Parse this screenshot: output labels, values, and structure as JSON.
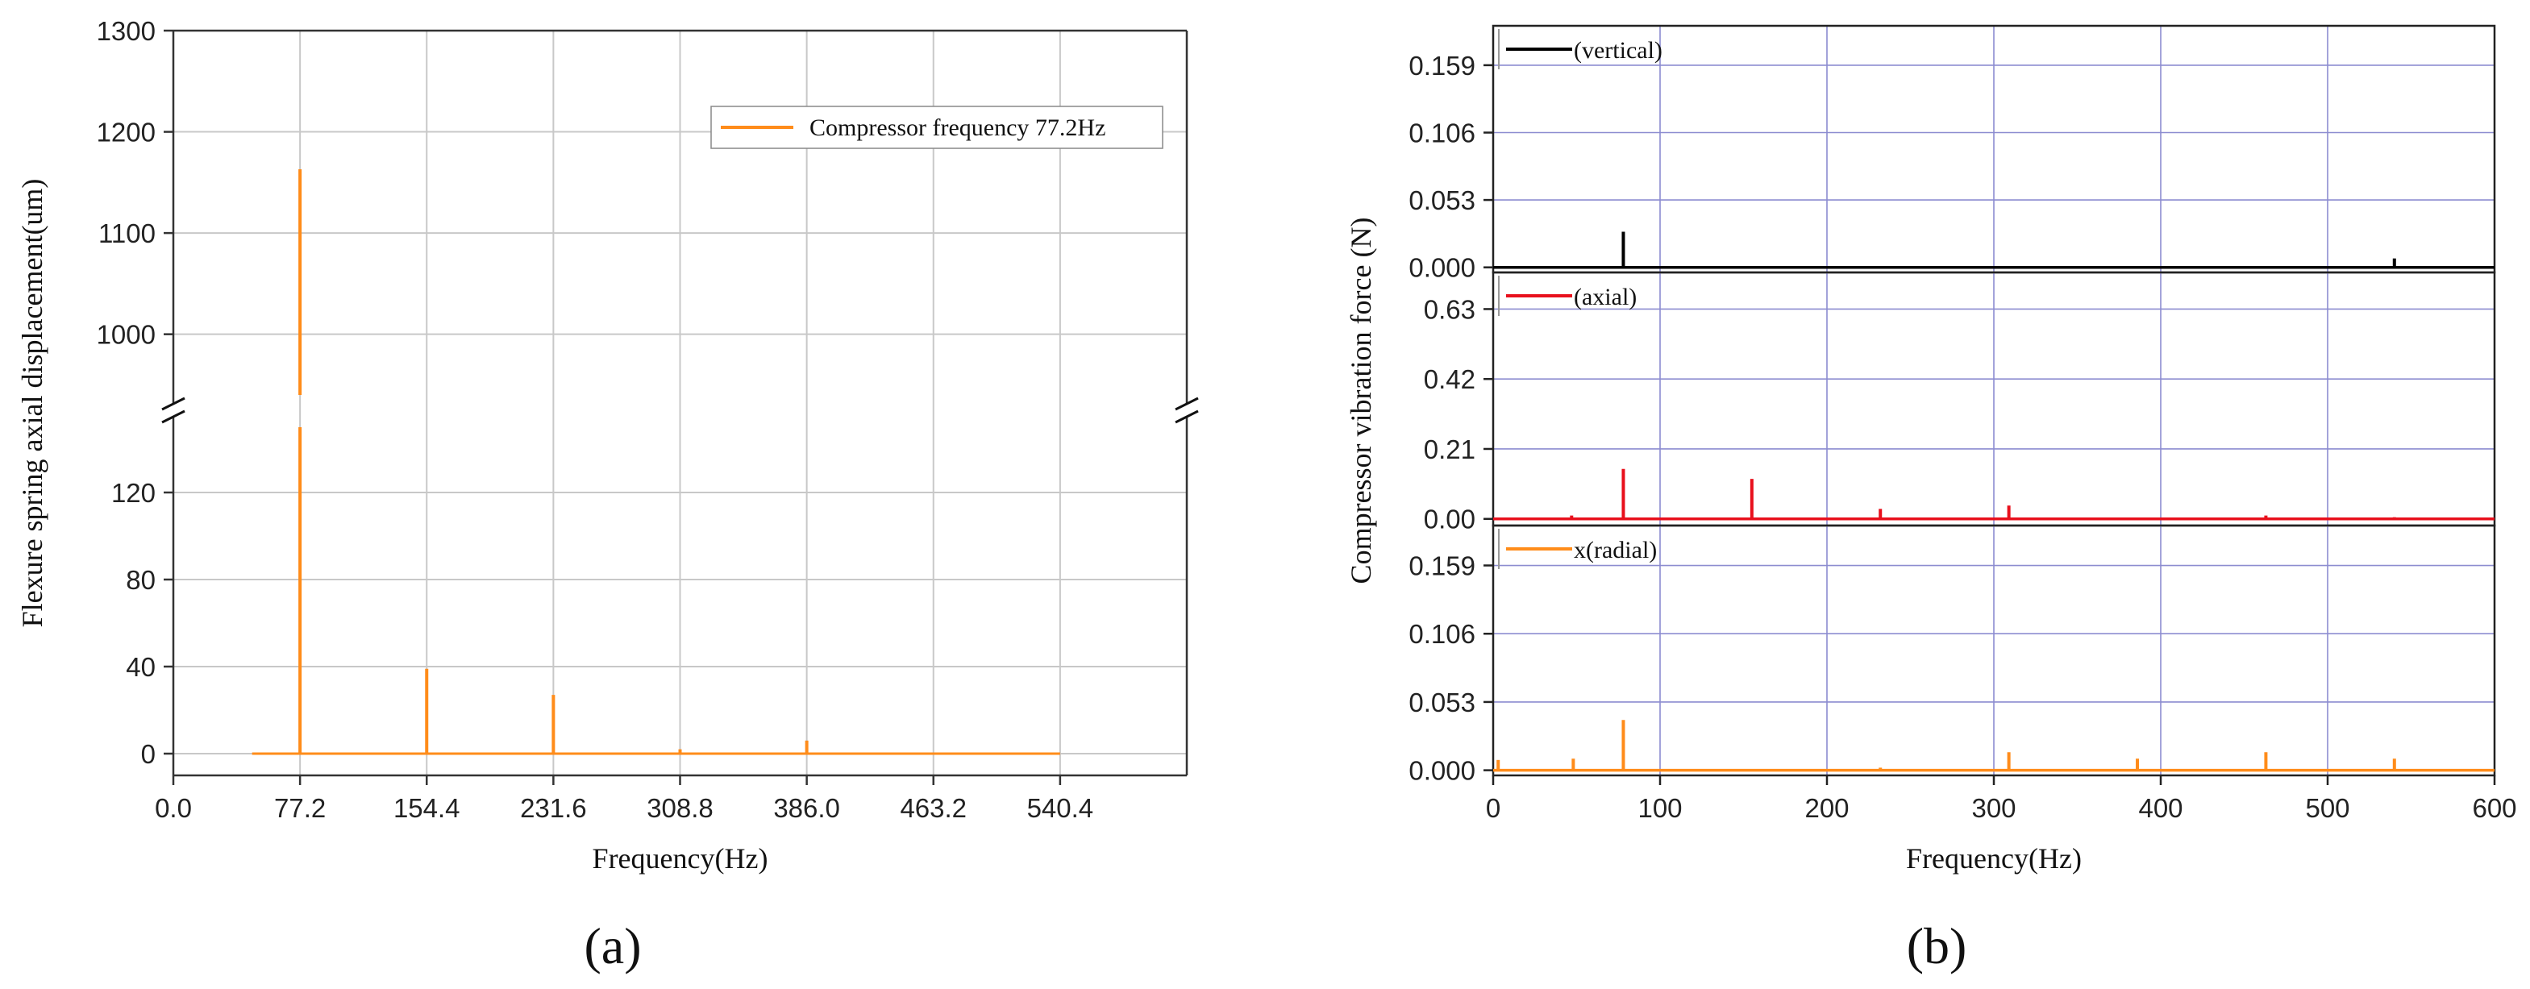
{
  "chart_data": [
    {
      "type": "line",
      "panel_label": "(a)",
      "xlabel": "Frequency(Hz)",
      "ylabel": "Flexure spring axial displacement(um)",
      "xlim": [
        0,
        617.6
      ],
      "x_ticks": [
        "0.0",
        "77.2",
        "154.4",
        "231.6",
        "308.8",
        "386.0",
        "463.2",
        "540.4"
      ],
      "x_tick_values": [
        0,
        77.2,
        154.4,
        231.6,
        308.8,
        386.0,
        463.2,
        540.4
      ],
      "y_broken_axis": {
        "lower_range": [
          -10,
          150
        ],
        "upper_range": [
          940,
          1300
        ],
        "lower_ticks": [
          0,
          40,
          80,
          120
        ],
        "upper_ticks": [
          1000,
          1100,
          1200,
          1300
        ]
      },
      "grid": true,
      "legend_position": "top-right",
      "series": [
        {
          "name": "Compressor frequency 77.2Hz",
          "color": "#ff8c1a",
          "x_range": [
            48,
            540.4
          ],
          "baseline": 0,
          "peaks": [
            {
              "x": 77.2,
              "y": 1163
            },
            {
              "x": 154.4,
              "y": 39
            },
            {
              "x": 231.6,
              "y": 27
            },
            {
              "x": 308.8,
              "y": 2
            },
            {
              "x": 386.0,
              "y": 6
            }
          ]
        }
      ]
    },
    {
      "type": "line",
      "panel_label": "(b)",
      "xlabel": "Frequency(Hz)",
      "ylabel": "Compressor vibration force (N)",
      "xlim": [
        0,
        600
      ],
      "x_ticks": [
        "0",
        "100",
        "200",
        "300",
        "400",
        "500",
        "600"
      ],
      "x_tick_values": [
        0,
        100,
        200,
        300,
        400,
        500,
        600
      ],
      "grid": true,
      "subplots": [
        {
          "legend": "(vertical)",
          "color": "#000000",
          "ylim": [
            -0.004,
            0.19
          ],
          "y_ticks": [
            "0.000",
            "0.053",
            "0.106",
            "0.159"
          ],
          "y_tick_values": [
            0,
            0.053,
            0.106,
            0.159
          ],
          "peaks": [
            {
              "x": 78,
              "y": 0.028
            },
            {
              "x": 540,
              "y": 0.007
            }
          ]
        },
        {
          "legend": "(axial)",
          "color": "#e8101c",
          "ylim": [
            -0.02,
            0.74
          ],
          "y_ticks": [
            "0.00",
            "0.21",
            "0.42",
            "0.63"
          ],
          "y_tick_values": [
            0,
            0.21,
            0.42,
            0.63
          ],
          "peaks": [
            {
              "x": 47,
              "y": 0.01
            },
            {
              "x": 78,
              "y": 0.15
            },
            {
              "x": 155,
              "y": 0.12
            },
            {
              "x": 232,
              "y": 0.03
            },
            {
              "x": 309,
              "y": 0.04
            },
            {
              "x": 463,
              "y": 0.01
            },
            {
              "x": 540,
              "y": 0.005
            }
          ]
        },
        {
          "legend": "x(radial)",
          "color": "#ff8c1a",
          "ylim": [
            -0.004,
            0.19
          ],
          "y_ticks": [
            "0.000",
            "0.053",
            "0.106",
            "0.159"
          ],
          "y_tick_values": [
            0,
            0.053,
            0.106,
            0.159
          ],
          "peaks": [
            {
              "x": 3,
              "y": 0.008
            },
            {
              "x": 48,
              "y": 0.009
            },
            {
              "x": 78,
              "y": 0.039
            },
            {
              "x": 232,
              "y": 0.002
            },
            {
              "x": 309,
              "y": 0.014
            },
            {
              "x": 386,
              "y": 0.009
            },
            {
              "x": 463,
              "y": 0.014
            },
            {
              "x": 540,
              "y": 0.009
            }
          ]
        }
      ]
    }
  ]
}
